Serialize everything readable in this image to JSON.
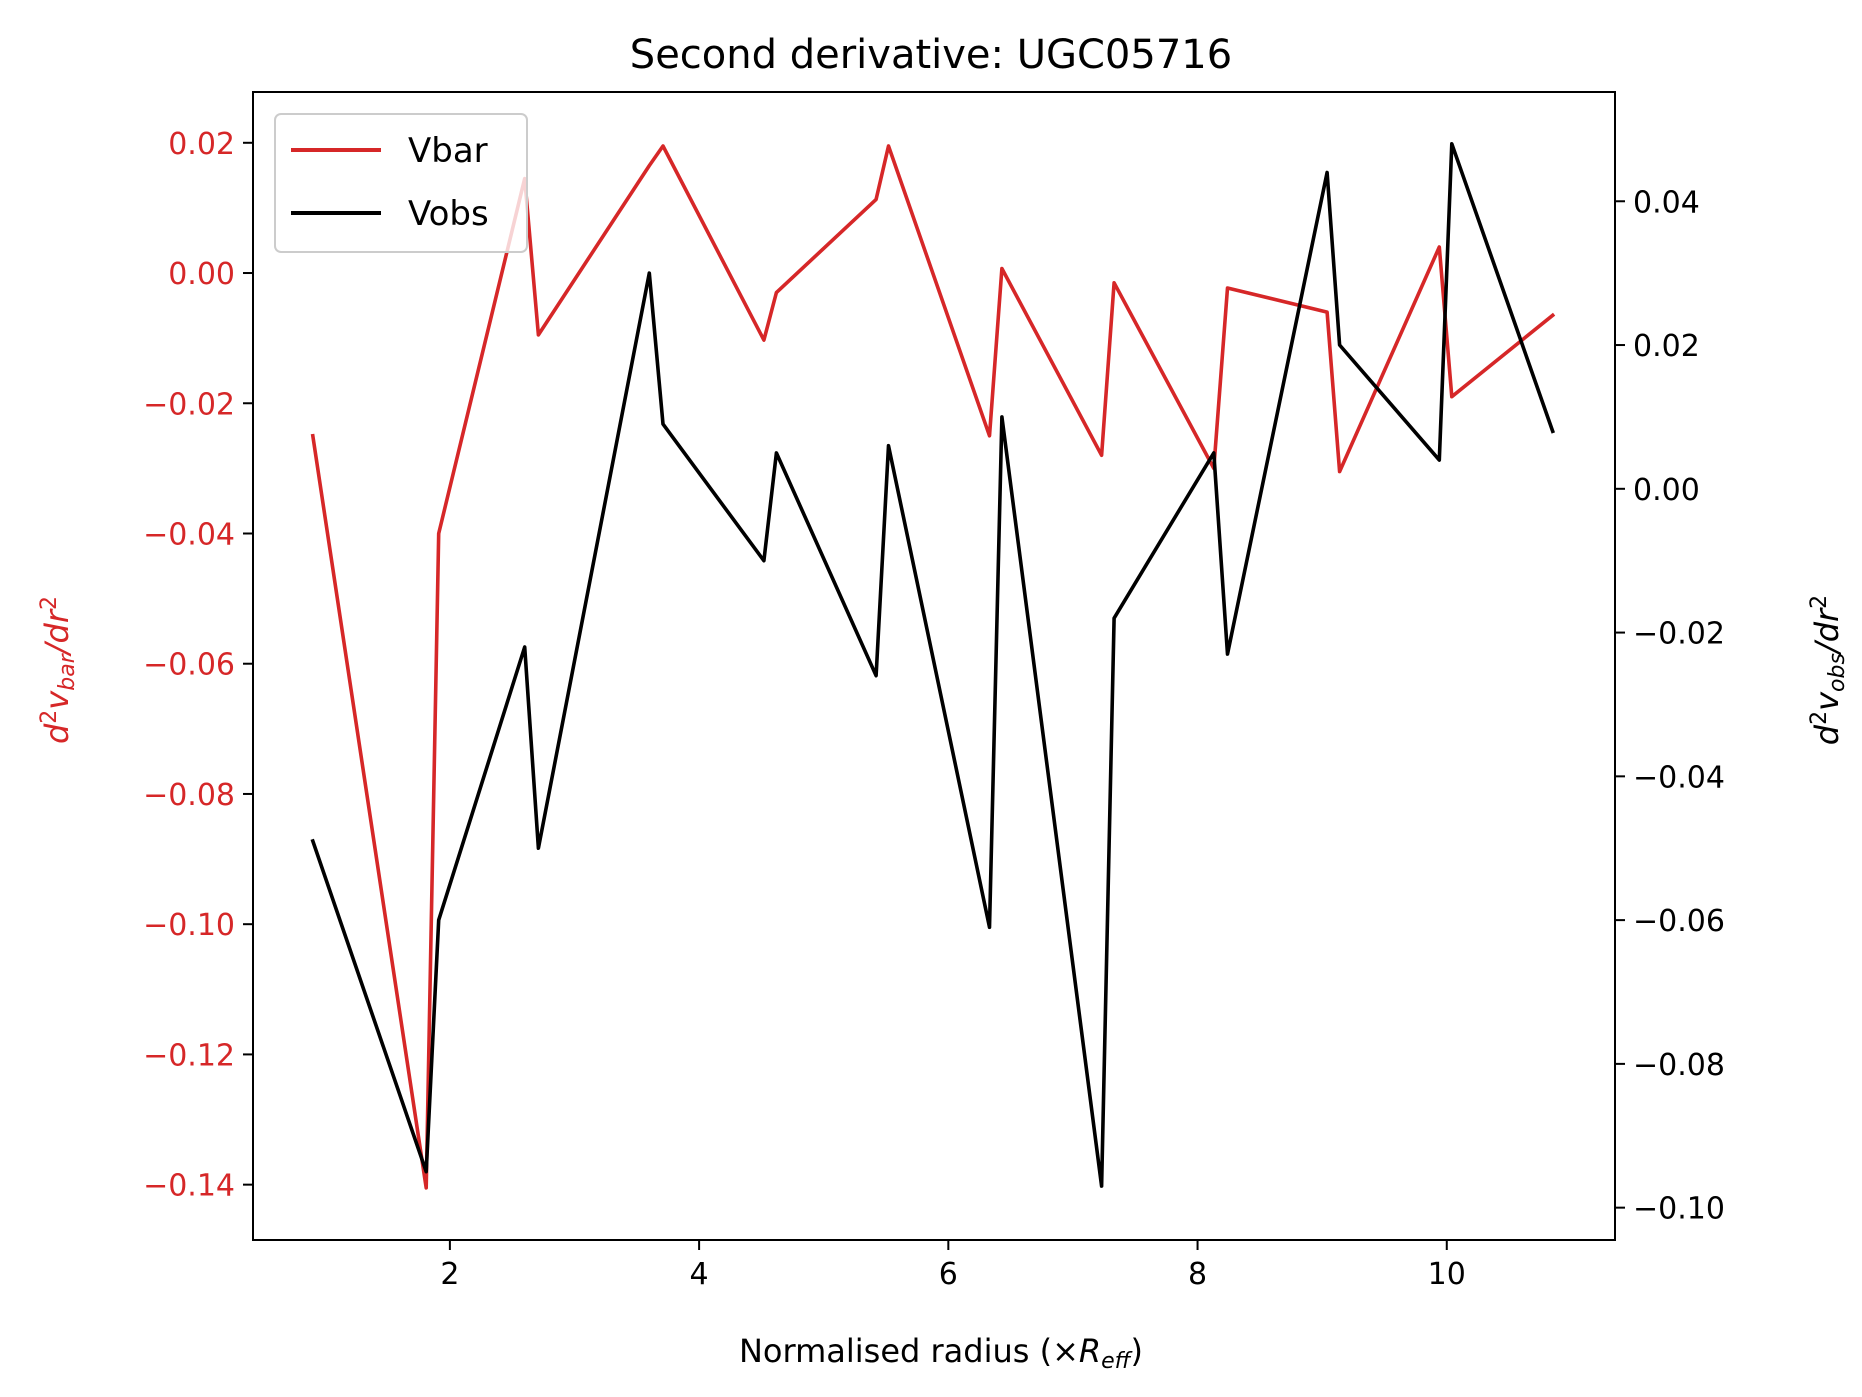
{
  "chart_data": {
    "type": "line",
    "title": "Second derivative: UGC05716",
    "xlabel": {
      "main": "Normalised radius (×",
      "var": "R",
      "sub": "eff",
      "close": ")"
    },
    "ylabel_left": {
      "pre": "d",
      "sup": "2",
      "var": "v",
      "sub": "bar",
      "post": "/dr",
      "post_sup": "2"
    },
    "ylabel_right": {
      "pre": "d",
      "sup": "2",
      "var": "v",
      "sub": "obs",
      "post": "/dr",
      "post_sup": "2"
    },
    "xlim": [
      0.42,
      11.35
    ],
    "ylim_left": [
      -0.1485,
      0.0278
    ],
    "ylim_right": [
      -0.1045,
      0.0552
    ],
    "x_ticks": [
      2,
      4,
      6,
      8,
      10
    ],
    "y_left_ticks": [
      0.02,
      0.0,
      -0.02,
      -0.04,
      -0.06,
      -0.08,
      -0.1,
      -0.12,
      -0.14
    ],
    "y_left_tick_labels": [
      "0.02",
      "0.00",
      "−0.02",
      "−0.04",
      "−0.06",
      "−0.08",
      "−0.10",
      "−0.12",
      "−0.14"
    ],
    "y_right_ticks": [
      0.04,
      0.02,
      0.0,
      -0.02,
      -0.04,
      -0.06,
      -0.08,
      -0.1
    ],
    "y_right_tick_labels": [
      "0.04",
      "0.02",
      "0.00",
      "−0.02",
      "−0.04",
      "−0.06",
      "−0.08",
      "−0.10"
    ],
    "legend_position": "top-left",
    "colors": {
      "vbar": "#d62728",
      "vobs": "#000000"
    },
    "series": [
      {
        "name": "Vbar",
        "axis": "left",
        "color": "#d62728",
        "x": [
          0.9,
          1.81,
          1.91,
          2.6,
          2.71,
          3.6,
          3.71,
          4.52,
          4.62,
          5.42,
          5.52,
          6.33,
          6.43,
          7.23,
          7.33,
          8.13,
          8.24,
          9.04,
          9.14,
          9.94,
          10.04,
          10.85
        ],
        "y": [
          -0.025,
          -0.1405,
          -0.04,
          0.0145,
          -0.0095,
          0.0165,
          0.0195,
          -0.0103,
          -0.003,
          0.0113,
          0.0195,
          -0.025,
          0.0007,
          -0.028,
          -0.0015,
          -0.03,
          -0.0023,
          -0.006,
          -0.0305,
          0.004,
          -0.019,
          -0.0065
        ]
      },
      {
        "name": "Vobs",
        "axis": "right",
        "color": "#000000",
        "x": [
          0.9,
          1.81,
          1.91,
          2.6,
          2.71,
          3.6,
          3.71,
          4.52,
          4.62,
          5.42,
          5.52,
          6.33,
          6.43,
          7.23,
          7.33,
          8.13,
          8.24,
          9.04,
          9.14,
          9.94,
          10.04,
          10.85
        ],
        "y": [
          -0.049,
          -0.095,
          -0.06,
          -0.022,
          -0.05,
          0.03,
          0.009,
          -0.01,
          0.005,
          -0.026,
          0.006,
          -0.061,
          0.01,
          -0.097,
          -0.018,
          0.005,
          -0.023,
          0.044,
          0.02,
          0.004,
          0.048,
          0.008
        ]
      }
    ]
  }
}
